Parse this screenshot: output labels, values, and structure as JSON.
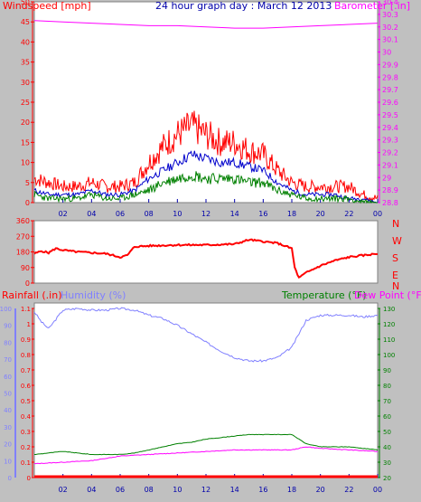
{
  "header": {
    "windspeed_label": "Windspeed [mph]",
    "title": "24 hour graph day : March 12 2013",
    "barometer_label": "Barometer [.in]"
  },
  "colors": {
    "gust": "#ff0000",
    "wind_avg": "#0000cc",
    "wind_low": "#008000",
    "barometer": "#ff00ff",
    "direction": "#ff0000",
    "rain": "#ff0000",
    "humidity": "#8080ff",
    "temperature": "#008000",
    "dewpoint": "#ff00ff",
    "title": "#0000aa",
    "wind_axis": "#ff0000",
    "baro_axis": "#ff00ff"
  },
  "chart_data": [
    {
      "type": "line",
      "panel": "wind",
      "x_tick_labels": [
        "02",
        "04",
        "06",
        "08",
        "10",
        "12",
        "14",
        "16",
        "18",
        "20",
        "22",
        "00"
      ],
      "x_range_hours": [
        0,
        24
      ],
      "wind_axis": {
        "ylim": [
          0,
          50
        ],
        "ticks": [
          "0",
          "5",
          "10",
          "15",
          "20",
          "25",
          "30",
          "35",
          "40",
          "45",
          "50"
        ]
      },
      "baro_axis": {
        "ylim": [
          28.8,
          30.4
        ],
        "ticks": [
          "28.8",
          "28.9",
          "29",
          "29.1",
          "29.2",
          "29.3",
          "29.4",
          "29.5",
          "29.6",
          "29.7",
          "29.8",
          "29.9",
          "30",
          "30.1",
          "30.2",
          "30.3",
          "30.4"
        ]
      },
      "series": [
        {
          "name": "gust",
          "x": [
            0,
            1,
            2,
            3,
            4,
            5,
            6,
            7,
            8,
            9,
            10,
            11,
            12,
            13,
            14,
            15,
            16,
            17,
            18,
            19,
            20,
            21,
            22,
            23,
            24
          ],
          "values": [
            6,
            5,
            4,
            4,
            5,
            4,
            4,
            5,
            10,
            14,
            17,
            19,
            17,
            15,
            15,
            13,
            12,
            8,
            5,
            4,
            4,
            4,
            4,
            2,
            1
          ]
        },
        {
          "name": "average",
          "x": [
            0,
            1,
            2,
            3,
            4,
            5,
            6,
            7,
            8,
            9,
            10,
            11,
            12,
            13,
            14,
            15,
            16,
            17,
            18,
            19,
            20,
            21,
            22,
            23,
            24
          ],
          "values": [
            3,
            2,
            2,
            2,
            3,
            2,
            2,
            3,
            6,
            8,
            10,
            12,
            11,
            10,
            10,
            9,
            8,
            5,
            3,
            2,
            2,
            2,
            1,
            1,
            0
          ]
        },
        {
          "name": "low",
          "x": [
            0,
            1,
            2,
            3,
            4,
            5,
            6,
            7,
            8,
            9,
            10,
            11,
            12,
            13,
            14,
            15,
            16,
            17,
            18,
            19,
            20,
            21,
            22,
            23,
            24
          ],
          "values": [
            2,
            1,
            1,
            1,
            2,
            1,
            1,
            2,
            3,
            5,
            6,
            7,
            6,
            6,
            6,
            5,
            5,
            3,
            2,
            1,
            1,
            1,
            1,
            0,
            0
          ]
        },
        {
          "name": "barometer",
          "x": [
            0,
            2,
            4,
            6,
            8,
            10,
            12,
            14,
            16,
            18,
            20,
            22,
            24
          ],
          "values": [
            30.25,
            30.24,
            30.23,
            30.22,
            30.21,
            30.21,
            30.2,
            30.19,
            30.19,
            30.2,
            30.21,
            30.22,
            30.23
          ]
        }
      ]
    },
    {
      "type": "line",
      "panel": "direction",
      "ylim": [
        0,
        360
      ],
      "y_ticks": [
        "360",
        "270",
        "180",
        "90",
        "0"
      ],
      "compass_labels": [
        "N",
        "W",
        "S",
        "E",
        "N"
      ],
      "series": [
        {
          "name": "direction",
          "x": [
            0,
            0.5,
            1,
            1.5,
            2,
            3,
            4,
            5,
            6,
            6.5,
            7,
            8,
            10,
            12,
            14,
            15,
            16,
            17,
            18,
            18.2,
            18.5,
            19,
            20,
            21,
            22,
            23,
            24
          ],
          "values": [
            170,
            185,
            175,
            200,
            190,
            180,
            175,
            170,
            150,
            160,
            210,
            215,
            220,
            220,
            225,
            250,
            240,
            230,
            200,
            90,
            30,
            60,
            100,
            130,
            150,
            160,
            170
          ]
        }
      ]
    },
    {
      "type": "line",
      "panel": "rain_humidity_temperature",
      "left_axes": {
        "rainfall": {
          "label": "Rainfall (.in)",
          "ylim": [
            0,
            1.1
          ],
          "ticks": [
            "0",
            "0.1",
            "0.2",
            "0.3",
            "0.4",
            "0.5",
            "0.6",
            "0.7",
            "0.8",
            "0.9",
            "1",
            "1.1"
          ]
        },
        "humidity": {
          "label": "Humidity (%)",
          "ylim": [
            0,
            100
          ],
          "ticks": [
            "0",
            "10",
            "20",
            "30",
            "40",
            "50",
            "60",
            "70",
            "80",
            "90",
            "100"
          ]
        }
      },
      "right_axis": {
        "label": "Temperature (°F)",
        "ylim": [
          20,
          130
        ],
        "ticks": [
          "20",
          "30",
          "40",
          "50",
          "60",
          "70",
          "80",
          "90",
          "100",
          "110",
          "120",
          "130"
        ]
      },
      "dewpoint_label": "Dew Point (°F)",
      "series": [
        {
          "name": "humidity",
          "x": [
            0,
            0.5,
            1,
            2,
            3,
            4,
            5,
            6,
            7,
            8,
            9,
            10,
            11,
            12,
            13,
            14,
            15,
            16,
            17,
            18,
            18.5,
            19,
            20,
            21,
            22,
            23,
            24
          ],
          "values": [
            98,
            92,
            88,
            99,
            100,
            99,
            99,
            100,
            99,
            96,
            94,
            90,
            85,
            80,
            75,
            71,
            69,
            69,
            71,
            77,
            85,
            93,
            96,
            96,
            96,
            95,
            96
          ]
        },
        {
          "name": "temperature",
          "x": [
            0,
            1,
            2,
            3,
            4,
            5,
            6,
            7,
            8,
            9,
            10,
            11,
            12,
            13,
            14,
            15,
            16,
            17,
            18,
            19,
            20,
            21,
            22,
            23,
            24
          ],
          "values": [
            35,
            36,
            37,
            36,
            35,
            35,
            35,
            36,
            38,
            40,
            42,
            43,
            45,
            46,
            47,
            48,
            48,
            48,
            48,
            42,
            40,
            40,
            40,
            39,
            38
          ]
        },
        {
          "name": "dewpoint",
          "x": [
            0,
            2,
            4,
            6,
            8,
            10,
            12,
            14,
            16,
            18,
            19,
            20,
            22,
            24
          ],
          "values": [
            29,
            30,
            31,
            34,
            35,
            36,
            37,
            38,
            38,
            38,
            40,
            39,
            38,
            37
          ]
        },
        {
          "name": "rainfall",
          "x": [
            0,
            24
          ],
          "values": [
            0,
            0
          ]
        }
      ]
    }
  ]
}
